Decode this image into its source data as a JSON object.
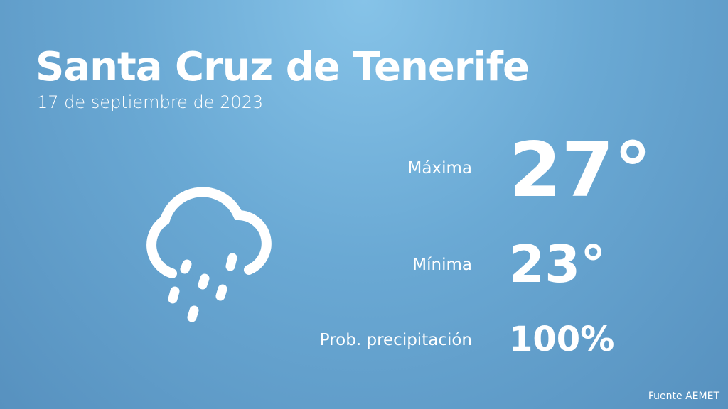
{
  "header": {
    "title": "Santa Cruz de Tenerife",
    "date": "17 de septiembre de 2023"
  },
  "stats": [
    {
      "label": "Máxima",
      "value": "27°"
    },
    {
      "label": "Mínima",
      "value": "23°"
    },
    {
      "label": "Prob. precipitación",
      "value": "100%"
    }
  ],
  "footer": {
    "source": "Fuente AEMET"
  }
}
